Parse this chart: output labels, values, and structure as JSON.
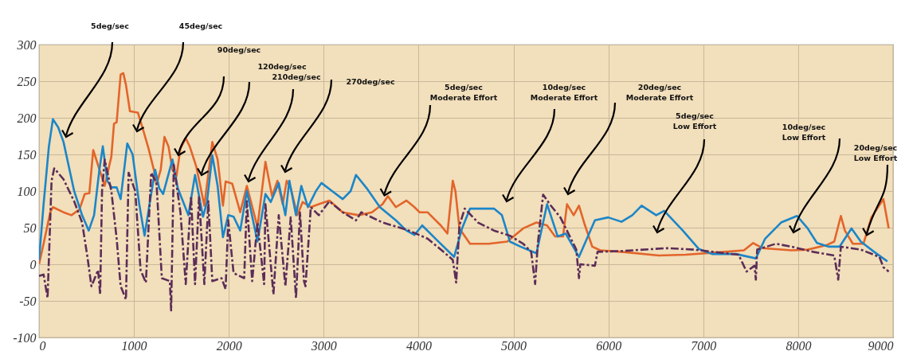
{
  "chart_data": {
    "type": "line",
    "xlim": [
      0,
      9000
    ],
    "xticks": [
      0,
      1000,
      2000,
      3000,
      4000,
      5000,
      6000,
      7000,
      8000,
      9000
    ],
    "ylim": [
      -100,
      300
    ],
    "yticks": [
      -100,
      -50,
      0,
      50,
      100,
      150,
      200,
      250,
      300
    ],
    "grid": true,
    "series": [
      {
        "color": "#e2652b",
        "x": [
          0,
          48,
          118,
          146,
          258,
          342,
          426,
          482,
          530,
          571,
          692,
          762,
          790,
          818,
          860,
          888,
          916,
          958,
          1042,
          1098,
          1154,
          1210,
          1238,
          1282,
          1322,
          1364,
          1406,
          1448,
          1490,
          1546,
          1588,
          1658,
          1742,
          1826,
          1882,
          1938,
          1966,
          2036,
          2120,
          2190,
          2302,
          2386,
          2456,
          2512,
          2568,
          2610,
          2652,
          2722,
          2778,
          2864,
          2948,
          3060,
          3200,
          3368,
          3508,
          3620,
          3676,
          3760,
          3872,
          3956,
          4010,
          4094,
          4234,
          4304,
          4332,
          4360,
          4388,
          4430,
          4542,
          4738,
          4934,
          5102,
          5242,
          5354,
          5438,
          5522,
          5564,
          5634,
          5690,
          5746,
          5830,
          5914,
          6138,
          6532,
          6812,
          7232,
          7428,
          7526,
          7624,
          7932,
          8100,
          8296,
          8380,
          8450,
          8492,
          8576,
          8688,
          8772,
          8898,
          8954
        ],
        "values": [
          0,
          28,
          71,
          78,
          71,
          67,
          75,
          96,
          97,
          156,
          107,
          147,
          192,
          194,
          259,
          261,
          245,
          209,
          207,
          183,
          158,
          129,
          109,
          129,
          174,
          161,
          129,
          120,
          158,
          172,
          161,
          133,
          80,
          167,
          143,
          80,
          113,
          110,
          71,
          107,
          51,
          140,
          93,
          114,
          82,
          114,
          104,
          67,
          85,
          78,
          82,
          87,
          71,
          67,
          71,
          82,
          93,
          78,
          87,
          78,
          71,
          71,
          53,
          42,
          78,
          114,
          100,
          49,
          28,
          28,
          31,
          49,
          57,
          53,
          38,
          38,
          82,
          67,
          80,
          56,
          24,
          19,
          17,
          12,
          13,
          17,
          19,
          29,
          22,
          19,
          20,
          26,
          31,
          66,
          46,
          28,
          28,
          64,
          89,
          49
        ]
      },
      {
        "color": "#1b86c9",
        "x": [
          0,
          48,
          104,
          146,
          202,
          258,
          370,
          454,
          524,
          580,
          636,
          672,
          720,
          762,
          818,
          860,
          930,
          986,
          1056,
          1112,
          1168,
          1224,
          1266,
          1308,
          1406,
          1462,
          1574,
          1644,
          1728,
          1770,
          1826,
          1882,
          1938,
          1994,
          2050,
          2120,
          2190,
          2302,
          2386,
          2442,
          2526,
          2596,
          2638,
          2708,
          2764,
          2834,
          2918,
          2976,
          3088,
          3200,
          3284,
          3340,
          3452,
          3592,
          3760,
          3872,
          3956,
          4038,
          4178,
          4374,
          4458,
          4542,
          4794,
          4878,
          4962,
          5074,
          5242,
          5354,
          5466,
          5550,
          5690,
          5858,
          5998,
          6138,
          6252,
          6350,
          6504,
          6588,
          6784,
          6952,
          7092,
          7344,
          7554,
          7652,
          7820,
          7988,
          8100,
          8198,
          8324,
          8436,
          8562,
          8660,
          8800,
          8940
        ],
        "values": [
          6,
          82,
          161,
          198,
          187,
          167,
          100,
          67,
          46,
          67,
          129,
          161,
          114,
          105,
          105,
          89,
          165,
          150,
          82,
          39,
          85,
          129,
          104,
          96,
          143,
          104,
          67,
          122,
          65,
          85,
          149,
          107,
          37,
          67,
          65,
          46,
          100,
          31,
          96,
          85,
          111,
          67,
          114,
          67,
          107,
          78,
          100,
          111,
          100,
          89,
          100,
          122,
          104,
          78,
          60,
          46,
          40,
          53,
          35,
          10,
          49,
          76,
          76,
          67,
          31,
          24,
          15,
          82,
          38,
          42,
          10,
          60,
          64,
          58,
          67,
          80,
          67,
          73,
          46,
          21,
          14,
          14,
          8,
          35,
          57,
          66,
          49,
          29,
          24,
          24,
          49,
          31,
          17,
          4
        ]
      },
      {
        "color": "#5b2d58",
        "line_style": "dashed",
        "x": [
          0,
          48,
          90,
          132,
          160,
          258,
          370,
          454,
          510,
          552,
          622,
          644,
          664,
          692,
          762,
          818,
          860,
          916,
          944,
          1014,
          1070,
          1126,
          1182,
          1238,
          1294,
          1378,
          1392,
          1420,
          1490,
          1546,
          1602,
          1644,
          1686,
          1742,
          1784,
          1826,
          1924,
          1966,
          1994,
          2050,
          2162,
          2190,
          2246,
          2302,
          2372,
          2386,
          2470,
          2526,
          2596,
          2652,
          2708,
          2750,
          2792,
          2808,
          2864,
          2948,
          3060,
          3200,
          3340,
          3396,
          3620,
          3900,
          4094,
          4262,
          4360,
          4396,
          4430,
          4486,
          4626,
          4794,
          4962,
          5102,
          5186,
          5228,
          5256,
          5312,
          5382,
          5494,
          5578,
          5662,
          5690,
          5704,
          5858,
          5886,
          6138,
          6252,
          6616,
          6896,
          7372,
          7456,
          7540,
          7554,
          7568,
          7764,
          7932,
          8156,
          8380,
          8422,
          8450,
          8660,
          8856,
          8898,
          8954
        ],
        "values": [
          -16,
          -14,
          -46,
          114,
          131,
          116,
          86,
          57,
          10,
          -30,
          -8,
          -41,
          100,
          143,
          100,
          35,
          -30,
          -48,
          125,
          100,
          -8,
          -25,
          125,
          111,
          -19,
          -23,
          -63,
          136,
          71,
          -27,
          93,
          -27,
          93,
          -27,
          86,
          -23,
          -19,
          -34,
          60,
          -12,
          -19,
          86,
          -23,
          57,
          -27,
          82,
          -41,
          67,
          -30,
          64,
          -46,
          71,
          -23,
          -30,
          78,
          67,
          86,
          71,
          60,
          71,
          57,
          46,
          35,
          17,
          6,
          -25,
          53,
          76,
          57,
          46,
          39,
          28,
          17,
          -27,
          28,
          95,
          82,
          64,
          42,
          20,
          -19,
          0,
          -2,
          17,
          18,
          19,
          22,
          20,
          13,
          -10,
          -2,
          -21,
          20,
          28,
          24,
          17,
          12,
          -21,
          24,
          20,
          10,
          -4,
          -10
        ]
      }
    ],
    "annotations": [
      "5deg/sec",
      "45deg/sec",
      "90deg/sec",
      "120deg/sec",
      "210deg/sec",
      "270deg/sec",
      {
        "text": "5deg/sec\nModerate Effort",
        "x": 3640,
        "y": 94
      },
      "10deg/sec\nModerate Effort",
      "20deg/sec\nModerate Effort",
      "5deg/sec\nLow Effort",
      "10deg/sec\nLow Effort",
      {
        "text": "20deg/sec\nLow Effort",
        "x": 8724,
        "y": 40
      }
    ]
  }
}
